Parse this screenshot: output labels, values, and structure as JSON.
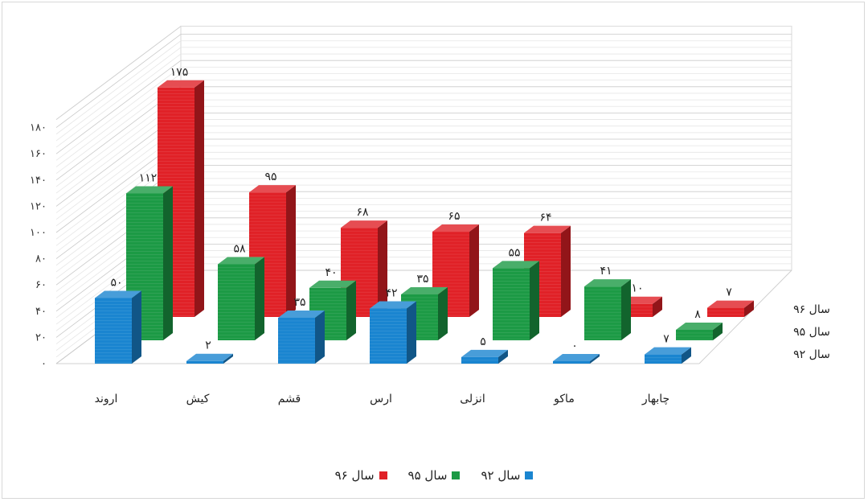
{
  "chart_data": {
    "type": "bar",
    "subtype": "3d-clustered-column",
    "categories": [
      "اروند",
      "کیش",
      "قشم",
      "ارس",
      "انزلی",
      "ماکو",
      "چابهار"
    ],
    "series": [
      {
        "name": "سال ۹۲",
        "color": "#1a85d0",
        "values": [
          50,
          2,
          35,
          42,
          5,
          0,
          7
        ],
        "labels": [
          "۵۰",
          "۲",
          "۳۵",
          "۴۲",
          "۵",
          "۰",
          "۷"
        ]
      },
      {
        "name": "سال ۹۵",
        "color": "#1c9a45",
        "values": [
          112,
          58,
          40,
          35,
          55,
          41,
          8
        ],
        "labels": [
          "۱۱۲",
          "۵۸",
          "۴۰",
          "۳۵",
          "۵۵",
          "۴۱",
          "۸"
        ]
      },
      {
        "name": "سال ۹۶",
        "color": "#e02127",
        "values": [
          175,
          95,
          68,
          65,
          64,
          10,
          7
        ],
        "labels": [
          "۱۷۵",
          "۹۵",
          "۶۸",
          "۶۵",
          "۶۴",
          "۱۰",
          "۷"
        ]
      }
    ],
    "y_ticks": [
      "۰",
      "۲۰",
      "۴۰",
      "۶۰",
      "۸۰",
      "۱۰۰",
      "۱۲۰",
      "۱۴۰",
      "۱۶۰",
      "۱۸۰"
    ],
    "ylim": [
      0,
      180
    ],
    "depth_axis_labels": [
      "سال ۹۶",
      "سال ۹۵",
      "سال ۹۲"
    ],
    "grid": true,
    "legend_position": "bottom"
  }
}
